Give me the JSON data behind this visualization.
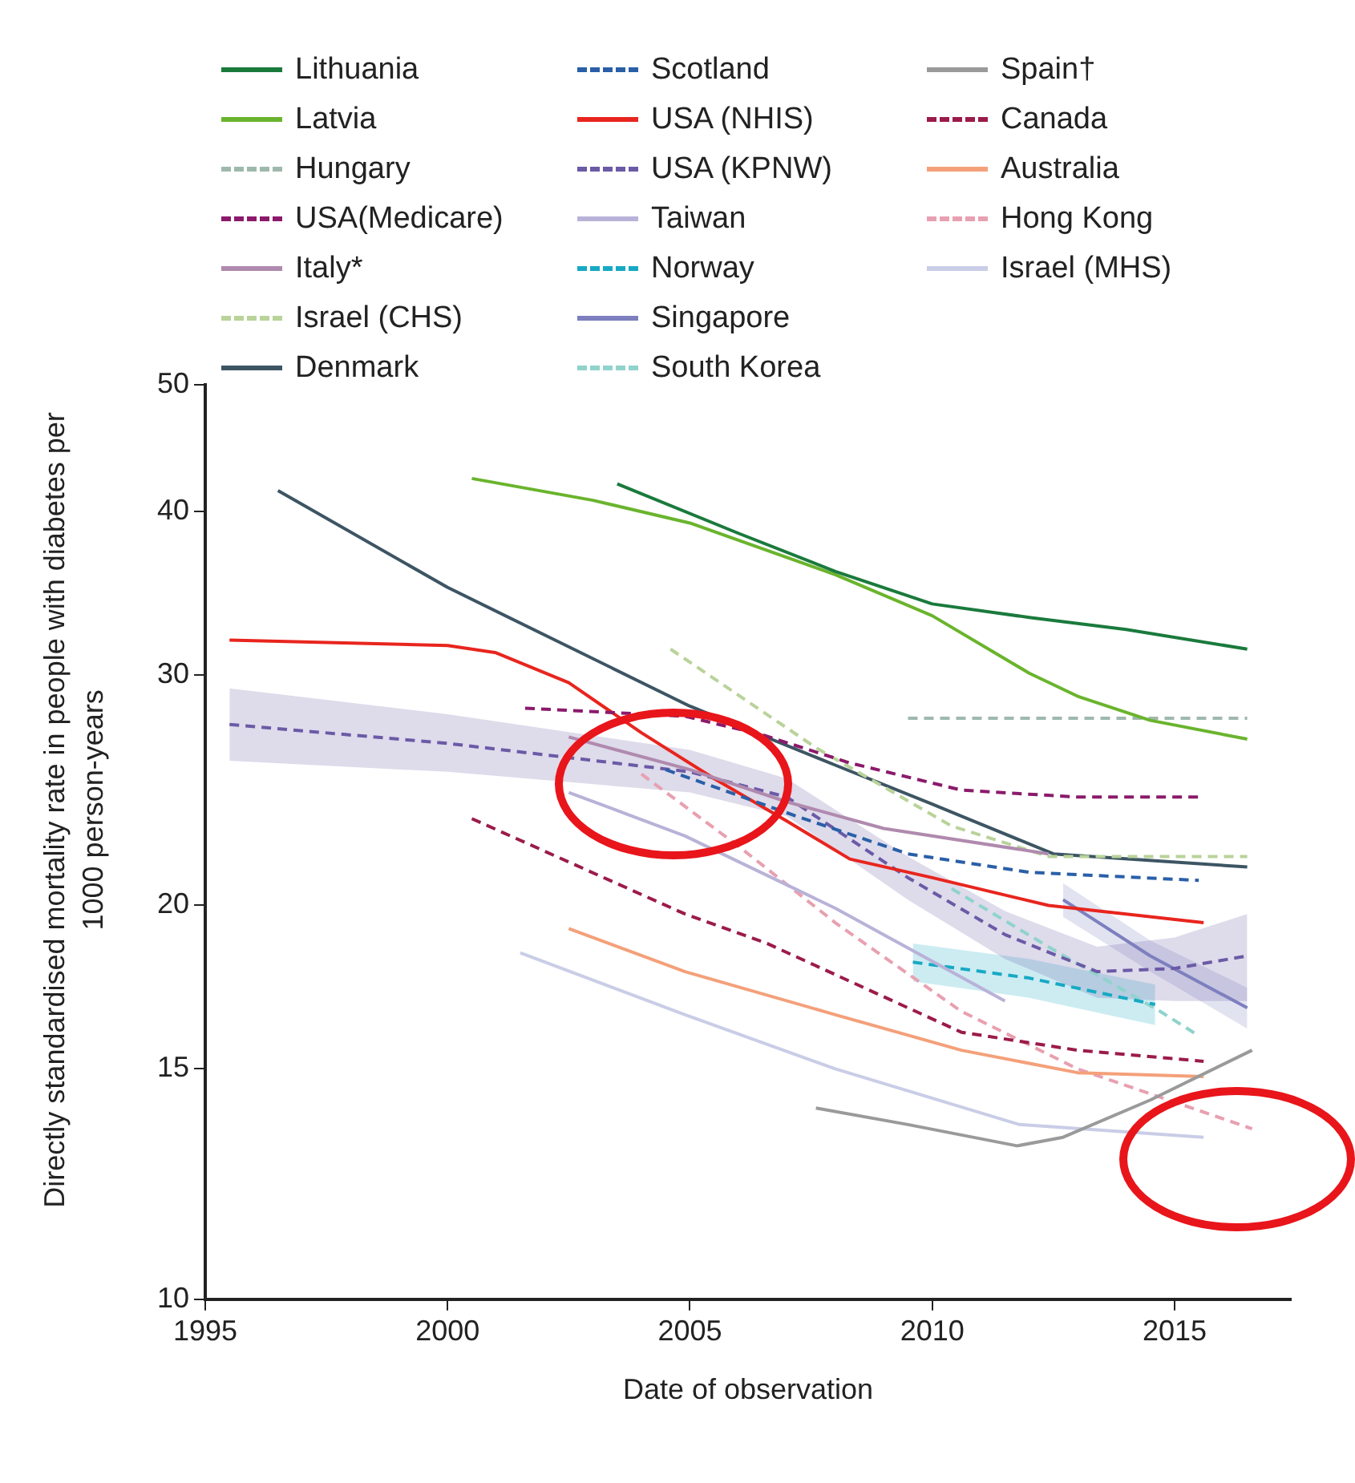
{
  "chart_data": {
    "type": "line",
    "xlabel": "Date of observation",
    "ylabel": "Directly standardised mortality rate in people with diabetes per 1000 person-years",
    "xlim": [
      1995,
      2017.4
    ],
    "xticks": [
      1995,
      2000,
      2005,
      2010,
      2015
    ],
    "ylim": [
      10,
      50
    ],
    "yticks": [
      10,
      15,
      20,
      30,
      40,
      50
    ],
    "log": "y",
    "grid": false,
    "legend": "top",
    "marker": "none",
    "series": [
      {
        "name": "Lithuania",
        "color": "#1a7a3c",
        "line_style": "solid",
        "x": [
          2003.5,
          2006,
          2008,
          2010,
          2012,
          2014,
          2016.5
        ],
        "values": [
          42,
          38.5,
          36,
          34,
          33.2,
          32.5,
          31.4
        ]
      },
      {
        "name": "Latvia",
        "color": "#6ab42d",
        "line_style": "solid",
        "x": [
          2000.5,
          2003,
          2005,
          2008,
          2010,
          2012,
          2013,
          2014.5,
          2016.5
        ],
        "values": [
          42.4,
          40.8,
          39.2,
          35.8,
          33.3,
          30.1,
          28.9,
          27.7,
          26.8
        ]
      },
      {
        "name": "Hungary",
        "color": "#9fb8ad",
        "line_style": "dashed",
        "x": [
          2009.5,
          2013,
          2016.5
        ],
        "values": [
          27.8,
          27.8,
          27.8
        ]
      },
      {
        "name": "USA(Medicare)",
        "color": "#8b1a6b",
        "line_style": "dashed",
        "x": [
          2001.6,
          2004.9,
          2006.5,
          2008.3,
          2010.6,
          2013,
          2015.6
        ],
        "values": [
          28.3,
          27.9,
          27,
          25.7,
          24.5,
          24.2,
          24.2
        ]
      },
      {
        "name": "Italy*",
        "color": "#b08aae",
        "line_style": "solid",
        "x": [
          2002.5,
          2005,
          2007,
          2009,
          2012.4
        ],
        "values": [
          26.9,
          25.4,
          24,
          22.9,
          21.9
        ]
      },
      {
        "name": "Israel (CHS)",
        "color": "#b9d39a",
        "line_style": "dashed",
        "x": [
          2004.6,
          2007.6,
          2010.4,
          2012.4,
          2016.5
        ],
        "values": [
          31.4,
          26.4,
          23,
          21.8,
          21.8
        ]
      },
      {
        "name": "Denmark",
        "color": "#3d5563",
        "line_style": "solid",
        "x": [
          1996.5,
          2000,
          2005,
          2008,
          2010,
          2012.5,
          2016.5
        ],
        "values": [
          41.5,
          35,
          28.4,
          25.6,
          23.9,
          21.9,
          21.4
        ]
      },
      {
        "name": "Scotland",
        "color": "#2a5fa8",
        "line_style": "dashed",
        "x": [
          2004.5,
          2007.2,
          2009.5,
          2012,
          2015.5
        ],
        "values": [
          25.4,
          23.4,
          21.9,
          21.2,
          20.9
        ]
      },
      {
        "name": "USA (NHIS)",
        "color": "#e8251e",
        "line_style": "solid",
        "x": [
          1995.5,
          2000,
          2001,
          2002.5,
          2004,
          2005.5,
          2007,
          2008.3,
          2010,
          2012.4,
          2015.6
        ],
        "values": [
          31.9,
          31.6,
          31.2,
          29.6,
          27.1,
          25,
          23.2,
          21.7,
          21,
          20,
          19.4
        ]
      },
      {
        "name": "USA (KPNW)",
        "color": "#6b5aa6",
        "line_style": "dashed",
        "x": [
          1995.5,
          2000,
          2005,
          2007,
          2009.5,
          2011.5,
          2013.4,
          2015,
          2016.5
        ],
        "values": [
          27.5,
          26.6,
          25.3,
          24.2,
          21,
          19,
          17.8,
          17.9,
          18.3
        ],
        "lower": [
          25.8,
          25.3,
          24.4,
          23.4,
          20.2,
          18.2,
          17,
          16.9,
          16.9
        ],
        "upper": [
          29.3,
          28,
          26.3,
          25,
          21.8,
          19.8,
          18.6,
          18.9,
          19.7
        ]
      },
      {
        "name": "Taiwan",
        "color": "#b9b2d8",
        "line_style": "solid",
        "x": [
          2002.5,
          2004.9,
          2008,
          2011.5
        ],
        "values": [
          24.4,
          22.6,
          19.9,
          16.9
        ]
      },
      {
        "name": "Norway",
        "color": "#17a9c4",
        "line_style": "dashed",
        "x": [
          2009.6,
          2012,
          2014.6
        ],
        "values": [
          18.1,
          17.6,
          16.8
        ],
        "lower": [
          17.5,
          17,
          16.2
        ],
        "upper": [
          18.7,
          18.2,
          17.4
        ]
      },
      {
        "name": "Singapore",
        "color": "#7d7fbf",
        "line_style": "solid",
        "x": [
          2012.7,
          2014.5,
          2016.5
        ],
        "values": [
          20.2,
          18.3,
          16.7
        ],
        "lower": [
          19.6,
          17.8,
          16.1
        ],
        "upper": [
          20.8,
          18.8,
          17.3
        ]
      },
      {
        "name": "South Korea",
        "color": "#8fd3cc",
        "line_style": "dashed",
        "x": [
          2010.4,
          2012.5,
          2014.7,
          2015.5
        ],
        "values": [
          20.6,
          18.5,
          16.6,
          15.9
        ]
      },
      {
        "name": "Spain†",
        "color": "#9a9a9a",
        "line_style": "solid",
        "x": [
          2007.6,
          2009.5,
          2011.75,
          2012.7,
          2014.5,
          2016.6
        ],
        "values": [
          14,
          13.6,
          13.1,
          13.3,
          14.2,
          15.5
        ]
      },
      {
        "name": "Canada",
        "color": "#9b1b4a",
        "line_style": "dashed",
        "x": [
          2000.5,
          2004.9,
          2006.6,
          2010.6,
          2013,
          2015.6
        ],
        "values": [
          23.3,
          19.7,
          18.7,
          16,
          15.5,
          15.2
        ]
      },
      {
        "name": "Australia",
        "color": "#f4a07a",
        "line_style": "solid",
        "x": [
          2002.5,
          2004.9,
          2008,
          2010.6,
          2013,
          2015.6
        ],
        "values": [
          19.2,
          17.8,
          16.5,
          15.5,
          14.9,
          14.8
        ]
      },
      {
        "name": "Hong Kong",
        "color": "#e8a0b0",
        "line_style": "dashed",
        "x": [
          2004,
          2006,
          2008,
          2010.6,
          2013,
          2016.6
        ],
        "values": [
          25.2,
          22.2,
          19.4,
          16.6,
          15,
          13.5
        ]
      },
      {
        "name": "Israel (MHS)",
        "color": "#c9cde6",
        "line_style": "solid",
        "x": [
          2001.5,
          2004.9,
          2008,
          2011.8,
          2015.6
        ],
        "values": [
          18.4,
          16.5,
          15,
          13.6,
          13.3
        ]
      }
    ]
  }
}
